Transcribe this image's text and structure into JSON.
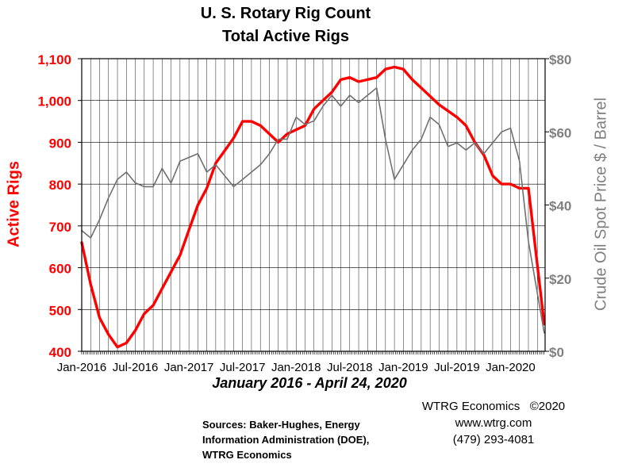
{
  "chart_data": {
    "type": "line",
    "title": "U. S. Rotary Rig Count",
    "subtitle": "Total Active Rigs",
    "period_label": "January 2016 - April 24, 2020",
    "ylabel_left": "Active Rigs",
    "ylabel_right": "Crude Oil Spot Price $ / Barrel",
    "ylim_left": [
      400,
      1100
    ],
    "ylim_right": [
      0,
      80
    ],
    "left_ticks": [
      "400",
      "500",
      "600",
      "700",
      "800",
      "900",
      "1,000",
      "1,100"
    ],
    "right_ticks": [
      "$0",
      "$20",
      "$40",
      "$60",
      "$80"
    ],
    "x_ticks": [
      "Jan-2016",
      "Jul-2016",
      "Jan-2017",
      "Jul-2017",
      "Jan-2018",
      "Jul-2018",
      "Jan-2019",
      "Jul-2019",
      "Jan-2020"
    ],
    "grid": true,
    "colors": {
      "rigs": "#ff0000",
      "oil": "#707070",
      "left_axis": "#ff0000",
      "right_axis": "#808080"
    },
    "series": [
      {
        "axis": "left",
        "x": [
          "2016-01",
          "2016-02",
          "2016-03",
          "2016-04",
          "2016-05",
          "2016-06",
          "2016-07",
          "2016-08",
          "2016-09",
          "2016-10",
          "2016-11",
          "2016-12",
          "2017-01",
          "2017-02",
          "2017-03",
          "2017-04",
          "2017-05",
          "2017-06",
          "2017-07",
          "2017-08",
          "2017-09",
          "2017-10",
          "2017-11",
          "2017-12",
          "2018-01",
          "2018-02",
          "2018-03",
          "2018-04",
          "2018-05",
          "2018-06",
          "2018-07",
          "2018-08",
          "2018-09",
          "2018-10",
          "2018-11",
          "2018-12",
          "2019-01",
          "2019-02",
          "2019-03",
          "2019-04",
          "2019-05",
          "2019-06",
          "2019-07",
          "2019-08",
          "2019-09",
          "2019-10",
          "2019-11",
          "2019-12",
          "2020-01",
          "2020-02",
          "2020-03",
          "2020-04-24"
        ],
        "values": [
          660,
          560,
          480,
          440,
          410,
          420,
          450,
          490,
          510,
          550,
          590,
          630,
          690,
          750,
          790,
          850,
          880,
          910,
          950,
          950,
          940,
          920,
          900,
          920,
          930,
          940,
          980,
          1000,
          1020,
          1050,
          1055,
          1045,
          1050,
          1055,
          1075,
          1080,
          1075,
          1050,
          1030,
          1010,
          990,
          975,
          960,
          940,
          900,
          870,
          820,
          800,
          800,
          790,
          790,
          465
        ]
      },
      {
        "axis": "right",
        "x": [
          "2016-01",
          "2016-02",
          "2016-03",
          "2016-04",
          "2016-05",
          "2016-06",
          "2016-07",
          "2016-08",
          "2016-09",
          "2016-10",
          "2016-11",
          "2016-12",
          "2017-01",
          "2017-02",
          "2017-03",
          "2017-04",
          "2017-05",
          "2017-06",
          "2017-07",
          "2017-08",
          "2017-09",
          "2017-10",
          "2017-11",
          "2017-12",
          "2018-01",
          "2018-02",
          "2018-03",
          "2018-04",
          "2018-05",
          "2018-06",
          "2018-07",
          "2018-08",
          "2018-09",
          "2018-10",
          "2018-11",
          "2018-12",
          "2019-01",
          "2019-02",
          "2019-03",
          "2019-04",
          "2019-05",
          "2019-06",
          "2019-07",
          "2019-08",
          "2019-09",
          "2019-10",
          "2019-11",
          "2019-12",
          "2020-01",
          "2020-02",
          "2020-03",
          "2020-04-24"
        ],
        "values": [
          33,
          31,
          36,
          42,
          47,
          49,
          46,
          45,
          45,
          50,
          46,
          52,
          53,
          54,
          49,
          51,
          48,
          45,
          47,
          49,
          51,
          54,
          58,
          58,
          64,
          62,
          63,
          67,
          70,
          67,
          70,
          68,
          70,
          72,
          58,
          47,
          51,
          55,
          58,
          64,
          62,
          56,
          57,
          55,
          57,
          54,
          57,
          60,
          61,
          52,
          30,
          5
        ]
      }
    ]
  },
  "footer": {
    "sources": [
      "Sources: Baker-Hughes, Energy",
      "Information Administration (DOE),",
      "WTRG Economics"
    ],
    "company": "WTRG Economics   ©2020",
    "website": "www.wtrg.com",
    "phone": "(479) 293-4081"
  }
}
